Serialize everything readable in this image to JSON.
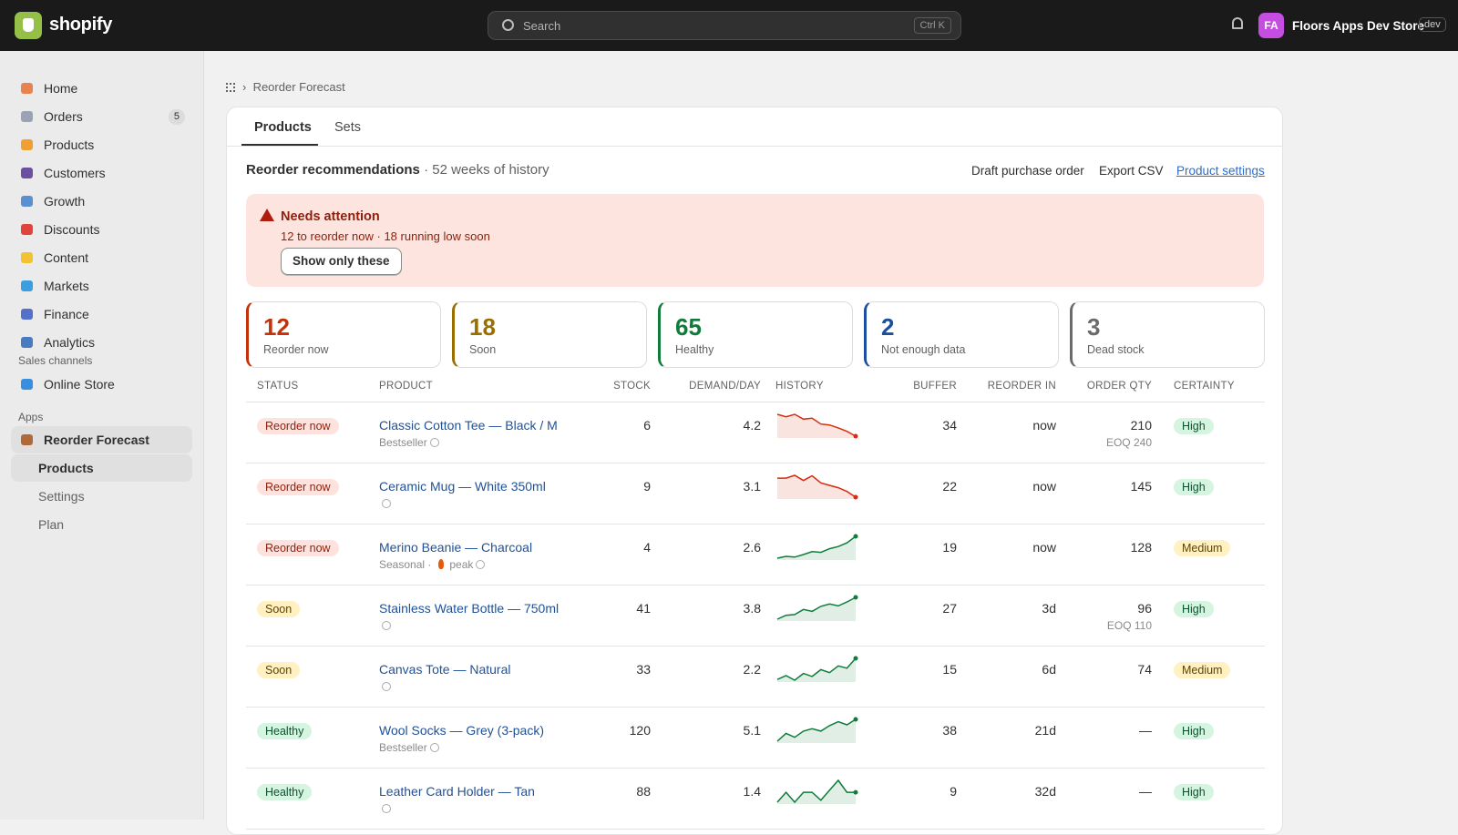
{
  "topbar": {
    "brand": "shopify",
    "search_placeholder": "Search",
    "search_shortcut": "Ctrl K",
    "avatar": "FA",
    "store": "Floors Apps Dev Store",
    "store_badge": "dev"
  },
  "sidebar": {
    "items": [
      {
        "label": "Home"
      },
      {
        "label": "Orders",
        "badge": "5"
      },
      {
        "label": "Products"
      },
      {
        "label": "Customers"
      },
      {
        "label": "Growth"
      },
      {
        "label": "Discounts"
      },
      {
        "label": "Content"
      },
      {
        "label": "Markets"
      },
      {
        "label": "Finance"
      },
      {
        "label": "Analytics"
      }
    ],
    "sales_channels_heading": "Sales channels",
    "sales_channels": [
      {
        "label": "Online Store"
      }
    ],
    "apps_heading": "Apps",
    "app": {
      "label": "Reorder Forecast",
      "subitems": [
        "Products",
        "Settings",
        "Plan"
      ]
    }
  },
  "breadcrumb": "Reorder Forecast",
  "tabs": [
    "Products",
    "Sets"
  ],
  "section": {
    "title": "Reorder recommendations",
    "subtitle": "· 52 weeks of history",
    "actions": [
      "Draft purchase order",
      "Export CSV"
    ],
    "link": "Product settings"
  },
  "alert": {
    "title": "Needs attention",
    "text": "12 to reorder now · 18 running low soon",
    "button": "Show only these"
  },
  "summary": [
    {
      "value": 12,
      "label": "Reorder now",
      "color": "#c4320a"
    },
    {
      "value": 18,
      "label": "Soon",
      "color": "#9a6f00"
    },
    {
      "value": 65,
      "label": "Healthy",
      "color": "#0f7c3a"
    },
    {
      "value": 2,
      "label": "Not enough data",
      "color": "#1d4fa0"
    },
    {
      "value": 3,
      "label": "Dead stock",
      "color": "#6b6b6b"
    }
  ],
  "table": {
    "columns": [
      "STATUS",
      "PRODUCT",
      "STOCK",
      "DEMAND/DAY",
      "HISTORY",
      "BUFFER",
      "REORDER IN",
      "ORDER QTY",
      "CERTAINTY"
    ],
    "rows": [
      {
        "status": "Reorder now",
        "tone": "critical",
        "product": "Classic Cotton Tee — Black / M",
        "note": "Bestseller",
        "stock": 6,
        "demand": 4.2,
        "history": [
          8,
          7.5,
          8,
          7,
          7.2,
          6,
          5.8,
          5.2,
          4.5,
          3.5
        ],
        "color": "#d72c0d",
        "buffer": 34,
        "reorder_in": "now",
        "order_qty": 210,
        "order_note": "EOQ 240",
        "certainty": "High",
        "certainty_tone": "success"
      },
      {
        "status": "Reorder now",
        "tone": "critical",
        "product": "Ceramic Mug — White 350ml",
        "stock": 9,
        "demand": 3.1,
        "history": [
          7,
          7,
          7.6,
          6.5,
          7.5,
          6,
          5.5,
          5,
          4.2,
          3
        ],
        "color": "#d72c0d",
        "buffer": 22,
        "reorder_in": "now",
        "order_qty": 145,
        "certainty": "High",
        "certainty_tone": "success"
      },
      {
        "status": "Reorder now",
        "tone": "critical",
        "product": "Merino Beanie — Charcoal",
        "note": "Seasonal ·",
        "tag": "peak",
        "stock": 4,
        "demand": 2.6,
        "history": [
          2,
          2.5,
          2.3,
          3,
          3.8,
          3.6,
          4.6,
          5.2,
          6.2,
          8
        ],
        "color": "#0f7c3a",
        "buffer": 19,
        "reorder_in": "now",
        "order_qty": 128,
        "certainty": "Medium",
        "certainty_tone": "warning"
      },
      {
        "status": "Soon",
        "tone": "warning",
        "product": "Stainless Water Bottle — 750ml",
        "stock": 41,
        "demand": 3.8,
        "history": [
          2,
          3,
          3.2,
          4.5,
          4,
          5.3,
          5.9,
          5.4,
          6.4,
          7.6
        ],
        "color": "#0f7c3a",
        "buffer": 27,
        "reorder_in": "3d",
        "order_qty": 96,
        "order_note": "EOQ 110",
        "certainty": "High",
        "certainty_tone": "success"
      },
      {
        "status": "Soon",
        "tone": "warning",
        "product": "Canvas Tote — Natural",
        "stock": 33,
        "demand": 2.2,
        "history": [
          2,
          3,
          1.8,
          3.6,
          2.8,
          4.6,
          3.8,
          5.6,
          5,
          7.6
        ],
        "color": "#0f7c3a",
        "buffer": 15,
        "reorder_in": "6d",
        "order_qty": 74,
        "certainty": "Medium",
        "certainty_tone": "warning"
      },
      {
        "status": "Healthy",
        "tone": "success",
        "product": "Wool Socks — Grey (3-pack)",
        "note": "Bestseller",
        "stock": 120,
        "demand": 5.1,
        "history": [
          2,
          4,
          3,
          4.6,
          5.2,
          4.6,
          6,
          7,
          6.2,
          7.6
        ],
        "color": "#0f7c3a",
        "buffer": 38,
        "reorder_in": "21d",
        "order_qty": "—",
        "certainty": "High",
        "certainty_tone": "success"
      },
      {
        "status": "Healthy",
        "tone": "success",
        "product": "Leather Card Holder — Tan",
        "stock": 88,
        "demand": 1.4,
        "history": [
          2,
          4.5,
          2,
          4.5,
          4.5,
          2.5,
          5,
          7.5,
          4.5,
          4.5
        ],
        "color": "#0f7c3a",
        "buffer": 9,
        "reorder_in": "32d",
        "order_qty": "—",
        "certainty": "High",
        "certainty_tone": "success"
      }
    ]
  }
}
